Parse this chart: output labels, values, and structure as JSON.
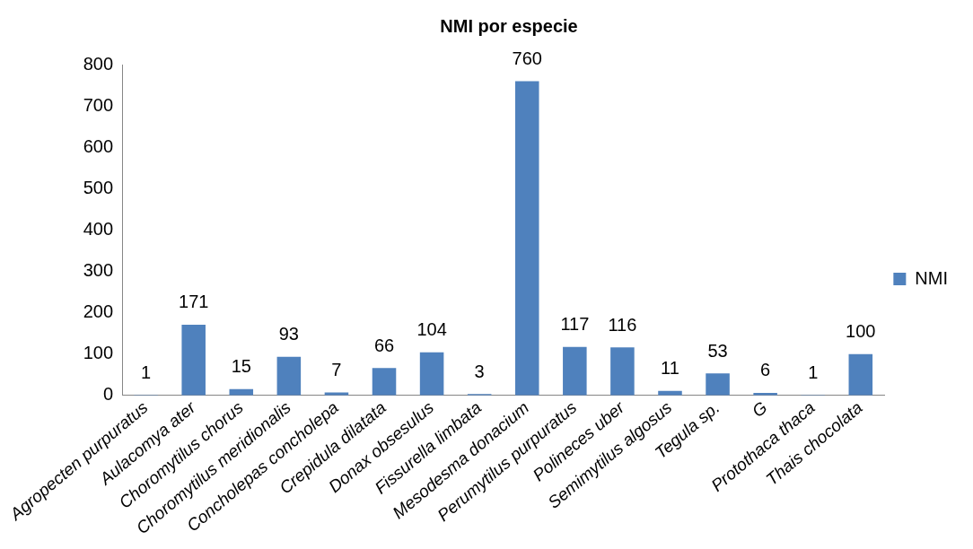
{
  "chart_data": {
    "type": "bar",
    "title": "NMI por especie",
    "categories": [
      "Agropecten purpuratus",
      "Aulacomya ater",
      "Choromytilus chorus",
      "Choromytilus meridionalis",
      "Concholepas concholepa",
      "Crepidula dilatata",
      "Donax obsesulus",
      "Fissurella limbata",
      "Mesodesma donacium",
      "Perumytilus purpuratus",
      "Polineces uber",
      "Semimytilus algosus",
      "Tegula sp.",
      "G",
      "Protothaca thaca",
      "Thais chocolata"
    ],
    "series": [
      {
        "name": "NMI",
        "color": "#4f81bd",
        "values": [
          1,
          171,
          15,
          93,
          7,
          66,
          104,
          3,
          760,
          117,
          116,
          11,
          53,
          6,
          1,
          100
        ]
      }
    ],
    "ylim": [
      0,
      800
    ],
    "yticks": [
      0,
      100,
      200,
      300,
      400,
      500,
      600,
      700,
      800
    ],
    "grid": false,
    "legend": "right",
    "data_labels": true
  }
}
